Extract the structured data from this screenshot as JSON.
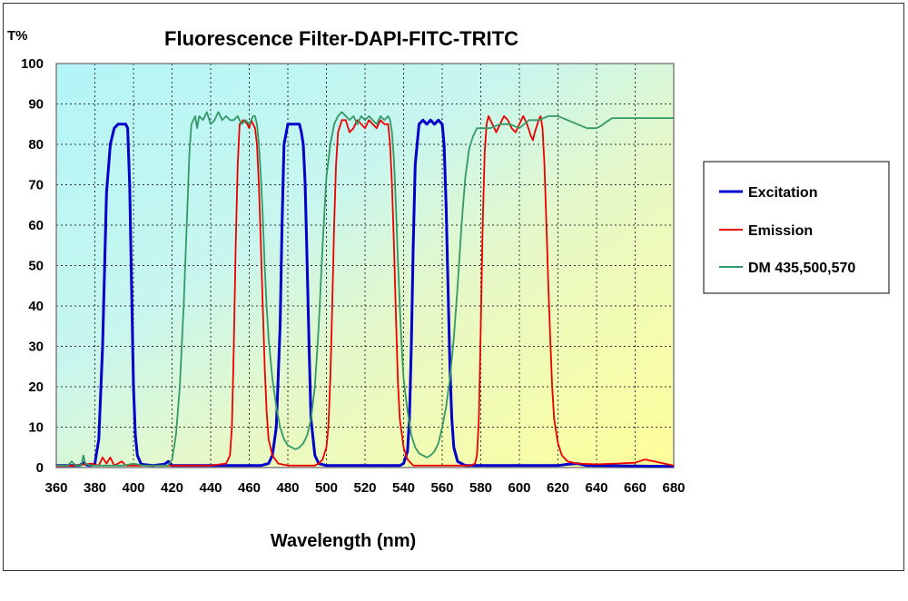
{
  "chart_data": {
    "type": "line",
    "title": "Fluorescence Filter-DAPI-FITC-TRITC",
    "xlabel": "Wavelength (nm)",
    "ylabel": "T%",
    "xlim": [
      360,
      680
    ],
    "ylim": [
      0,
      100
    ],
    "xticks": [
      "360",
      "380",
      "400",
      "420",
      "440",
      "460",
      "480",
      "500",
      "520",
      "540",
      "560",
      "580",
      "600",
      "620",
      "640",
      "660",
      "680"
    ],
    "yticks": [
      "0",
      "10",
      "20",
      "30",
      "40",
      "50",
      "60",
      "70",
      "80",
      "90",
      "100"
    ],
    "grid": true,
    "legend_position": "right",
    "background": "gradient cyan to yellow",
    "series": [
      {
        "name": "Excitation",
        "color": "#0000cc",
        "points": [
          [
            360,
            0.5
          ],
          [
            372,
            0.5
          ],
          [
            374,
            1.2
          ],
          [
            376,
            0.6
          ],
          [
            378,
            0.5
          ],
          [
            380,
            1
          ],
          [
            382,
            7
          ],
          [
            384,
            30
          ],
          [
            386,
            68
          ],
          [
            388,
            80
          ],
          [
            390,
            84
          ],
          [
            392,
            85
          ],
          [
            394,
            85
          ],
          [
            396,
            85
          ],
          [
            397,
            84
          ],
          [
            398,
            70
          ],
          [
            399,
            45
          ],
          [
            400,
            20
          ],
          [
            401,
            8
          ],
          [
            402,
            3
          ],
          [
            404,
            0.8
          ],
          [
            410,
            0.5
          ],
          [
            416,
            0.8
          ],
          [
            418,
            1.5
          ],
          [
            420,
            0.5
          ],
          [
            466,
            0.5
          ],
          [
            470,
            1
          ],
          [
            472,
            3
          ],
          [
            474,
            10
          ],
          [
            476,
            35
          ],
          [
            477,
            60
          ],
          [
            478,
            80
          ],
          [
            480,
            85
          ],
          [
            482,
            85
          ],
          [
            484,
            85
          ],
          [
            486,
            85
          ],
          [
            487,
            83
          ],
          [
            488,
            80
          ],
          [
            489,
            70
          ],
          [
            490,
            50
          ],
          [
            491,
            30
          ],
          [
            492,
            12
          ],
          [
            494,
            3
          ],
          [
            496,
            1
          ],
          [
            500,
            0.5
          ],
          [
            538,
            0.5
          ],
          [
            540,
            1
          ],
          [
            542,
            4
          ],
          [
            543,
            12
          ],
          [
            544,
            30
          ],
          [
            545,
            55
          ],
          [
            546,
            75
          ],
          [
            548,
            85
          ],
          [
            550,
            86
          ],
          [
            552,
            85
          ],
          [
            554,
            86
          ],
          [
            556,
            85
          ],
          [
            558,
            86
          ],
          [
            560,
            85
          ],
          [
            561,
            80
          ],
          [
            562,
            65
          ],
          [
            563,
            45
          ],
          [
            564,
            25
          ],
          [
            565,
            12
          ],
          [
            566,
            5
          ],
          [
            568,
            1.5
          ],
          [
            572,
            0.5
          ],
          [
            620,
            0.5
          ],
          [
            625,
            0.8
          ],
          [
            630,
            1
          ],
          [
            635,
            0.5
          ],
          [
            680,
            0.3
          ]
        ]
      },
      {
        "name": "Emission",
        "color": "#ee0000",
        "points": [
          [
            360,
            0.3
          ],
          [
            370,
            0.5
          ],
          [
            378,
            1
          ],
          [
            382,
            0.5
          ],
          [
            384,
            2.5
          ],
          [
            386,
            1
          ],
          [
            388,
            2.5
          ],
          [
            390,
            0.5
          ],
          [
            394,
            1.5
          ],
          [
            396,
            0.5
          ],
          [
            400,
            0.5
          ],
          [
            420,
            0.5
          ],
          [
            430,
            0.5
          ],
          [
            440,
            0.5
          ],
          [
            448,
            1
          ],
          [
            450,
            3
          ],
          [
            451,
            10
          ],
          [
            452,
            30
          ],
          [
            453,
            55
          ],
          [
            454,
            75
          ],
          [
            455,
            85
          ],
          [
            457,
            86
          ],
          [
            459,
            85
          ],
          [
            460,
            84
          ],
          [
            461,
            86
          ],
          [
            462,
            85
          ],
          [
            463,
            84
          ],
          [
            464,
            80
          ],
          [
            465,
            70
          ],
          [
            466,
            55
          ],
          [
            467,
            40
          ],
          [
            468,
            25
          ],
          [
            469,
            14
          ],
          [
            470,
            7
          ],
          [
            472,
            3
          ],
          [
            475,
            1
          ],
          [
            480,
            0.5
          ],
          [
            494,
            0.5
          ],
          [
            496,
            1
          ],
          [
            498,
            2
          ],
          [
            500,
            5
          ],
          [
            501,
            10
          ],
          [
            502,
            22
          ],
          [
            503,
            40
          ],
          [
            504,
            60
          ],
          [
            505,
            75
          ],
          [
            506,
            83
          ],
          [
            508,
            86
          ],
          [
            510,
            86
          ],
          [
            512,
            83
          ],
          [
            514,
            84
          ],
          [
            516,
            86
          ],
          [
            518,
            85
          ],
          [
            520,
            84
          ],
          [
            522,
            86
          ],
          [
            524,
            85
          ],
          [
            526,
            84
          ],
          [
            528,
            86
          ],
          [
            530,
            85
          ],
          [
            532,
            85
          ],
          [
            533,
            80
          ],
          [
            534,
            70
          ],
          [
            535,
            55
          ],
          [
            536,
            38
          ],
          [
            537,
            22
          ],
          [
            538,
            12
          ],
          [
            540,
            5
          ],
          [
            542,
            2
          ],
          [
            545,
            0.5
          ],
          [
            575,
            0.5
          ],
          [
            577,
            1
          ],
          [
            578,
            3
          ],
          [
            579,
            12
          ],
          [
            580,
            35
          ],
          [
            581,
            60
          ],
          [
            582,
            78
          ],
          [
            583,
            85
          ],
          [
            584,
            87
          ],
          [
            586,
            85
          ],
          [
            588,
            83
          ],
          [
            590,
            85
          ],
          [
            592,
            87
          ],
          [
            594,
            86
          ],
          [
            596,
            84
          ],
          [
            598,
            83
          ],
          [
            600,
            85
          ],
          [
            602,
            87
          ],
          [
            604,
            85
          ],
          [
            606,
            82
          ],
          [
            607,
            81
          ],
          [
            608,
            83
          ],
          [
            610,
            86
          ],
          [
            611,
            87
          ],
          [
            612,
            84
          ],
          [
            613,
            75
          ],
          [
            614,
            60
          ],
          [
            615,
            45
          ],
          [
            616,
            32
          ],
          [
            617,
            20
          ],
          [
            618,
            12
          ],
          [
            620,
            6
          ],
          [
            622,
            3
          ],
          [
            625,
            1.5
          ],
          [
            630,
            1
          ],
          [
            640,
            0.8
          ],
          [
            650,
            1
          ],
          [
            660,
            1.2
          ],
          [
            665,
            2
          ],
          [
            670,
            1.5
          ],
          [
            675,
            1
          ],
          [
            680,
            0.5
          ]
        ]
      },
      {
        "name": "DM 435,500,570",
        "color": "#339966",
        "points": [
          [
            360,
            0.5
          ],
          [
            366,
            0.5
          ],
          [
            368,
            1.5
          ],
          [
            370,
            0.5
          ],
          [
            373,
            0.5
          ],
          [
            374,
            3
          ],
          [
            375,
            1
          ],
          [
            378,
            0.5
          ],
          [
            395,
            0.5
          ],
          [
            400,
            1
          ],
          [
            405,
            0.5
          ],
          [
            410,
            0.5
          ],
          [
            418,
            0.5
          ],
          [
            420,
            2
          ],
          [
            422,
            8
          ],
          [
            424,
            20
          ],
          [
            426,
            40
          ],
          [
            428,
            65
          ],
          [
            429,
            78
          ],
          [
            430,
            85
          ],
          [
            432,
            87
          ],
          [
            433,
            84
          ],
          [
            434,
            87
          ],
          [
            436,
            86
          ],
          [
            438,
            88
          ],
          [
            440,
            85
          ],
          [
            442,
            86
          ],
          [
            444,
            88
          ],
          [
            446,
            86
          ],
          [
            448,
            87
          ],
          [
            450,
            86
          ],
          [
            452,
            86
          ],
          [
            454,
            87
          ],
          [
            456,
            85
          ],
          [
            458,
            86
          ],
          [
            460,
            85
          ],
          [
            462,
            87
          ],
          [
            463,
            87
          ],
          [
            464,
            85
          ],
          [
            465,
            80
          ],
          [
            466,
            72
          ],
          [
            467,
            62
          ],
          [
            468,
            50
          ],
          [
            469,
            40
          ],
          [
            470,
            32
          ],
          [
            472,
            22
          ],
          [
            474,
            15
          ],
          [
            476,
            10
          ],
          [
            478,
            7
          ],
          [
            480,
            5.5
          ],
          [
            482,
            5
          ],
          [
            484,
            4.5
          ],
          [
            486,
            5
          ],
          [
            488,
            6
          ],
          [
            490,
            8
          ],
          [
            492,
            12
          ],
          [
            494,
            20
          ],
          [
            496,
            35
          ],
          [
            498,
            55
          ],
          [
            500,
            72
          ],
          [
            502,
            80
          ],
          [
            504,
            85
          ],
          [
            506,
            87
          ],
          [
            508,
            88
          ],
          [
            510,
            87
          ],
          [
            512,
            86
          ],
          [
            514,
            87
          ],
          [
            516,
            85
          ],
          [
            518,
            87
          ],
          [
            520,
            86
          ],
          [
            522,
            87
          ],
          [
            524,
            86
          ],
          [
            526,
            85
          ],
          [
            528,
            87
          ],
          [
            530,
            86
          ],
          [
            532,
            87
          ],
          [
            533,
            86
          ],
          [
            534,
            83
          ],
          [
            535,
            76
          ],
          [
            536,
            65
          ],
          [
            537,
            52
          ],
          [
            538,
            40
          ],
          [
            539,
            30
          ],
          [
            540,
            22
          ],
          [
            542,
            14
          ],
          [
            544,
            8
          ],
          [
            546,
            5
          ],
          [
            548,
            3.5
          ],
          [
            550,
            3
          ],
          [
            552,
            2.5
          ],
          [
            554,
            3
          ],
          [
            556,
            4
          ],
          [
            558,
            6
          ],
          [
            560,
            10
          ],
          [
            562,
            15
          ],
          [
            564,
            22
          ],
          [
            566,
            32
          ],
          [
            568,
            45
          ],
          [
            570,
            60
          ],
          [
            572,
            72
          ],
          [
            574,
            79
          ],
          [
            576,
            82
          ],
          [
            578,
            84
          ],
          [
            580,
            84
          ],
          [
            585,
            84
          ],
          [
            590,
            85
          ],
          [
            595,
            85
          ],
          [
            600,
            84
          ],
          [
            605,
            86
          ],
          [
            610,
            86
          ],
          [
            615,
            87
          ],
          [
            620,
            87
          ],
          [
            625,
            86
          ],
          [
            630,
            85
          ],
          [
            635,
            84
          ],
          [
            638,
            84
          ],
          [
            640,
            84
          ],
          [
            642,
            84.5
          ],
          [
            645,
            85.5
          ],
          [
            648,
            86.5
          ],
          [
            650,
            86.5
          ],
          [
            660,
            86.5
          ],
          [
            670,
            86.5
          ],
          [
            680,
            86.5
          ]
        ]
      }
    ]
  }
}
